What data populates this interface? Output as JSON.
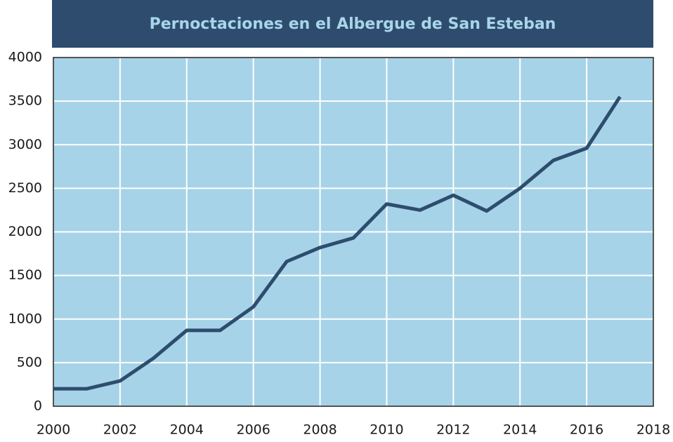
{
  "chart_data": {
    "type": "line",
    "title": "Pernoctaciones en el Albergue de San Esteban",
    "x": [
      2000,
      2001,
      2002,
      2003,
      2004,
      2005,
      2006,
      2007,
      2008,
      2009,
      2010,
      2011,
      2012,
      2013,
      2014,
      2015,
      2016,
      2017
    ],
    "series": [
      {
        "name": "Pernoctaciones",
        "color": "#2e4d6e",
        "values": [
          200,
          200,
          290,
          550,
          870,
          870,
          1140,
          1660,
          1820,
          1930,
          2320,
          2250,
          2420,
          2240,
          2500,
          2820,
          2960,
          3550
        ]
      }
    ],
    "xlim": [
      2000,
      2018
    ],
    "xticks": [
      2000,
      2002,
      2004,
      2006,
      2008,
      2010,
      2012,
      2014,
      2016,
      2018
    ],
    "ylim": [
      0,
      4000
    ],
    "yticks": [
      0,
      500,
      1000,
      1500,
      2000,
      2500,
      3000,
      3500,
      4000
    ],
    "grid": true
  }
}
